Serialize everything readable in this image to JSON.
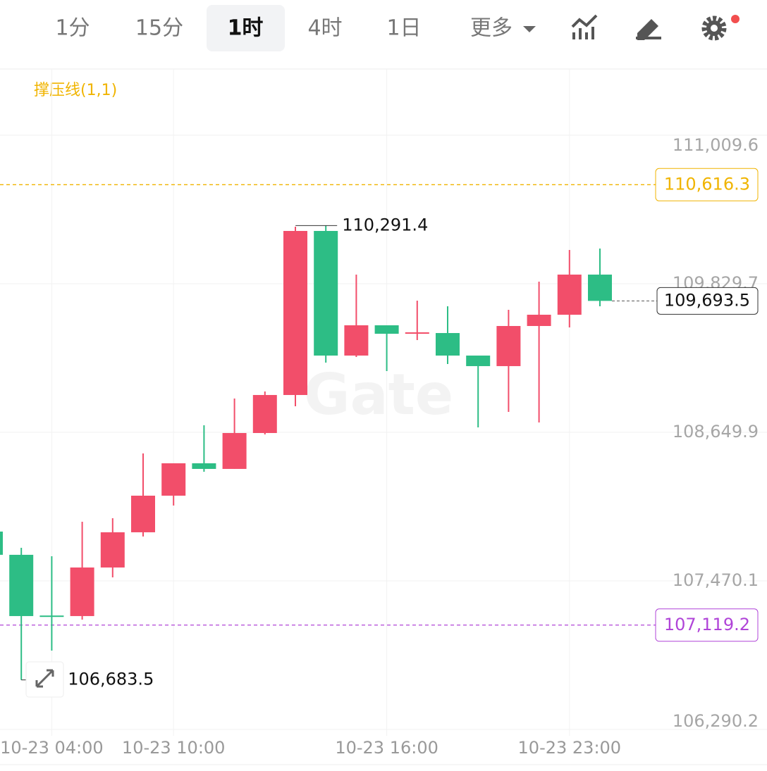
{
  "toolbar": {
    "tabs": [
      "1分",
      "15分",
      "1时",
      "4时",
      "1日",
      "更多"
    ],
    "active": 2
  },
  "chart_data": {
    "type": "candlestick",
    "indicator": "撑压线(1,1)",
    "watermark": "Gate",
    "categories": [
      null,
      null,
      "10-23 04:00",
      null,
      null,
      null,
      "10-23 10:00",
      null,
      null,
      null,
      null,
      null,
      null,
      "10-23 16:00",
      null,
      null,
      null,
      null,
      null,
      "10-23 23:00",
      null
    ],
    "open": [
      107861.7,
      107677.2,
      107195.0,
      107190.8,
      107576.5,
      107856.1,
      108146.8,
      108404.0,
      108359.3,
      108644.4,
      108946.3,
      110249.0,
      109259.4,
      109499.8,
      109432.7,
      109438.3,
      109259.4,
      109175.6,
      109494.2,
      109583.7,
      109902.4
    ],
    "high": [
      107889.6,
      107733.1,
      107666.0,
      107940.0,
      107967.9,
      108482.3,
      108404.0,
      108706.0,
      108918.4,
      108974.3,
      110282.6,
      110291.4,
      109902.4,
      109499.8,
      109695.5,
      109650.8,
      109259.4,
      109622.8,
      109846.5,
      110098.1,
      110109.3
    ],
    "low": [
      107666.1,
      106683.5,
      106916.8,
      107162.8,
      107498.4,
      107822.6,
      108068.5,
      108337.0,
      108359.3,
      108633.2,
      108856.9,
      109203.5,
      109248.3,
      109136.4,
      109382.4,
      109192.3,
      108689.1,
      108812.1,
      108728.3,
      109483.0,
      109650.8
    ],
    "close": [
      107677.2,
      107190.8,
      107188.0,
      107576.5,
      107856.1,
      108146.8,
      108404.0,
      108359.3,
      108644.4,
      108946.3,
      110249.0,
      109259.4,
      109499.8,
      109432.7,
      109443.9,
      109259.4,
      109175.6,
      109494.2,
      109583.7,
      109902.4,
      109693.5
    ],
    "up_color": "#f24e6a",
    "down_color": "#2dbd85",
    "ylim": [
      106240,
      111535
    ],
    "yticks": [
      {
        "value": 111009.6,
        "label": "111,009.6"
      },
      {
        "value": 109829.7,
        "label": "109,829.7"
      },
      {
        "value": 108649.9,
        "label": "108,649.9"
      },
      {
        "value": 107470.1,
        "label": "107,470.1"
      },
      {
        "value": 106290.2,
        "label": "106,290.2"
      }
    ],
    "grid": true,
    "reference_lines": [
      {
        "value": 110616.3,
        "label": "110,616.3",
        "color": "#f0b400"
      },
      {
        "value": 107119.2,
        "label": "107,119.2",
        "color": "#b044d8"
      }
    ],
    "high_marker": {
      "value": 110291.4,
      "label": "110,291.4"
    },
    "low_marker": {
      "value": 106683.5,
      "label": "106,683.5"
    },
    "current_price": {
      "value": 109693.5,
      "label": "109,693.5"
    }
  }
}
